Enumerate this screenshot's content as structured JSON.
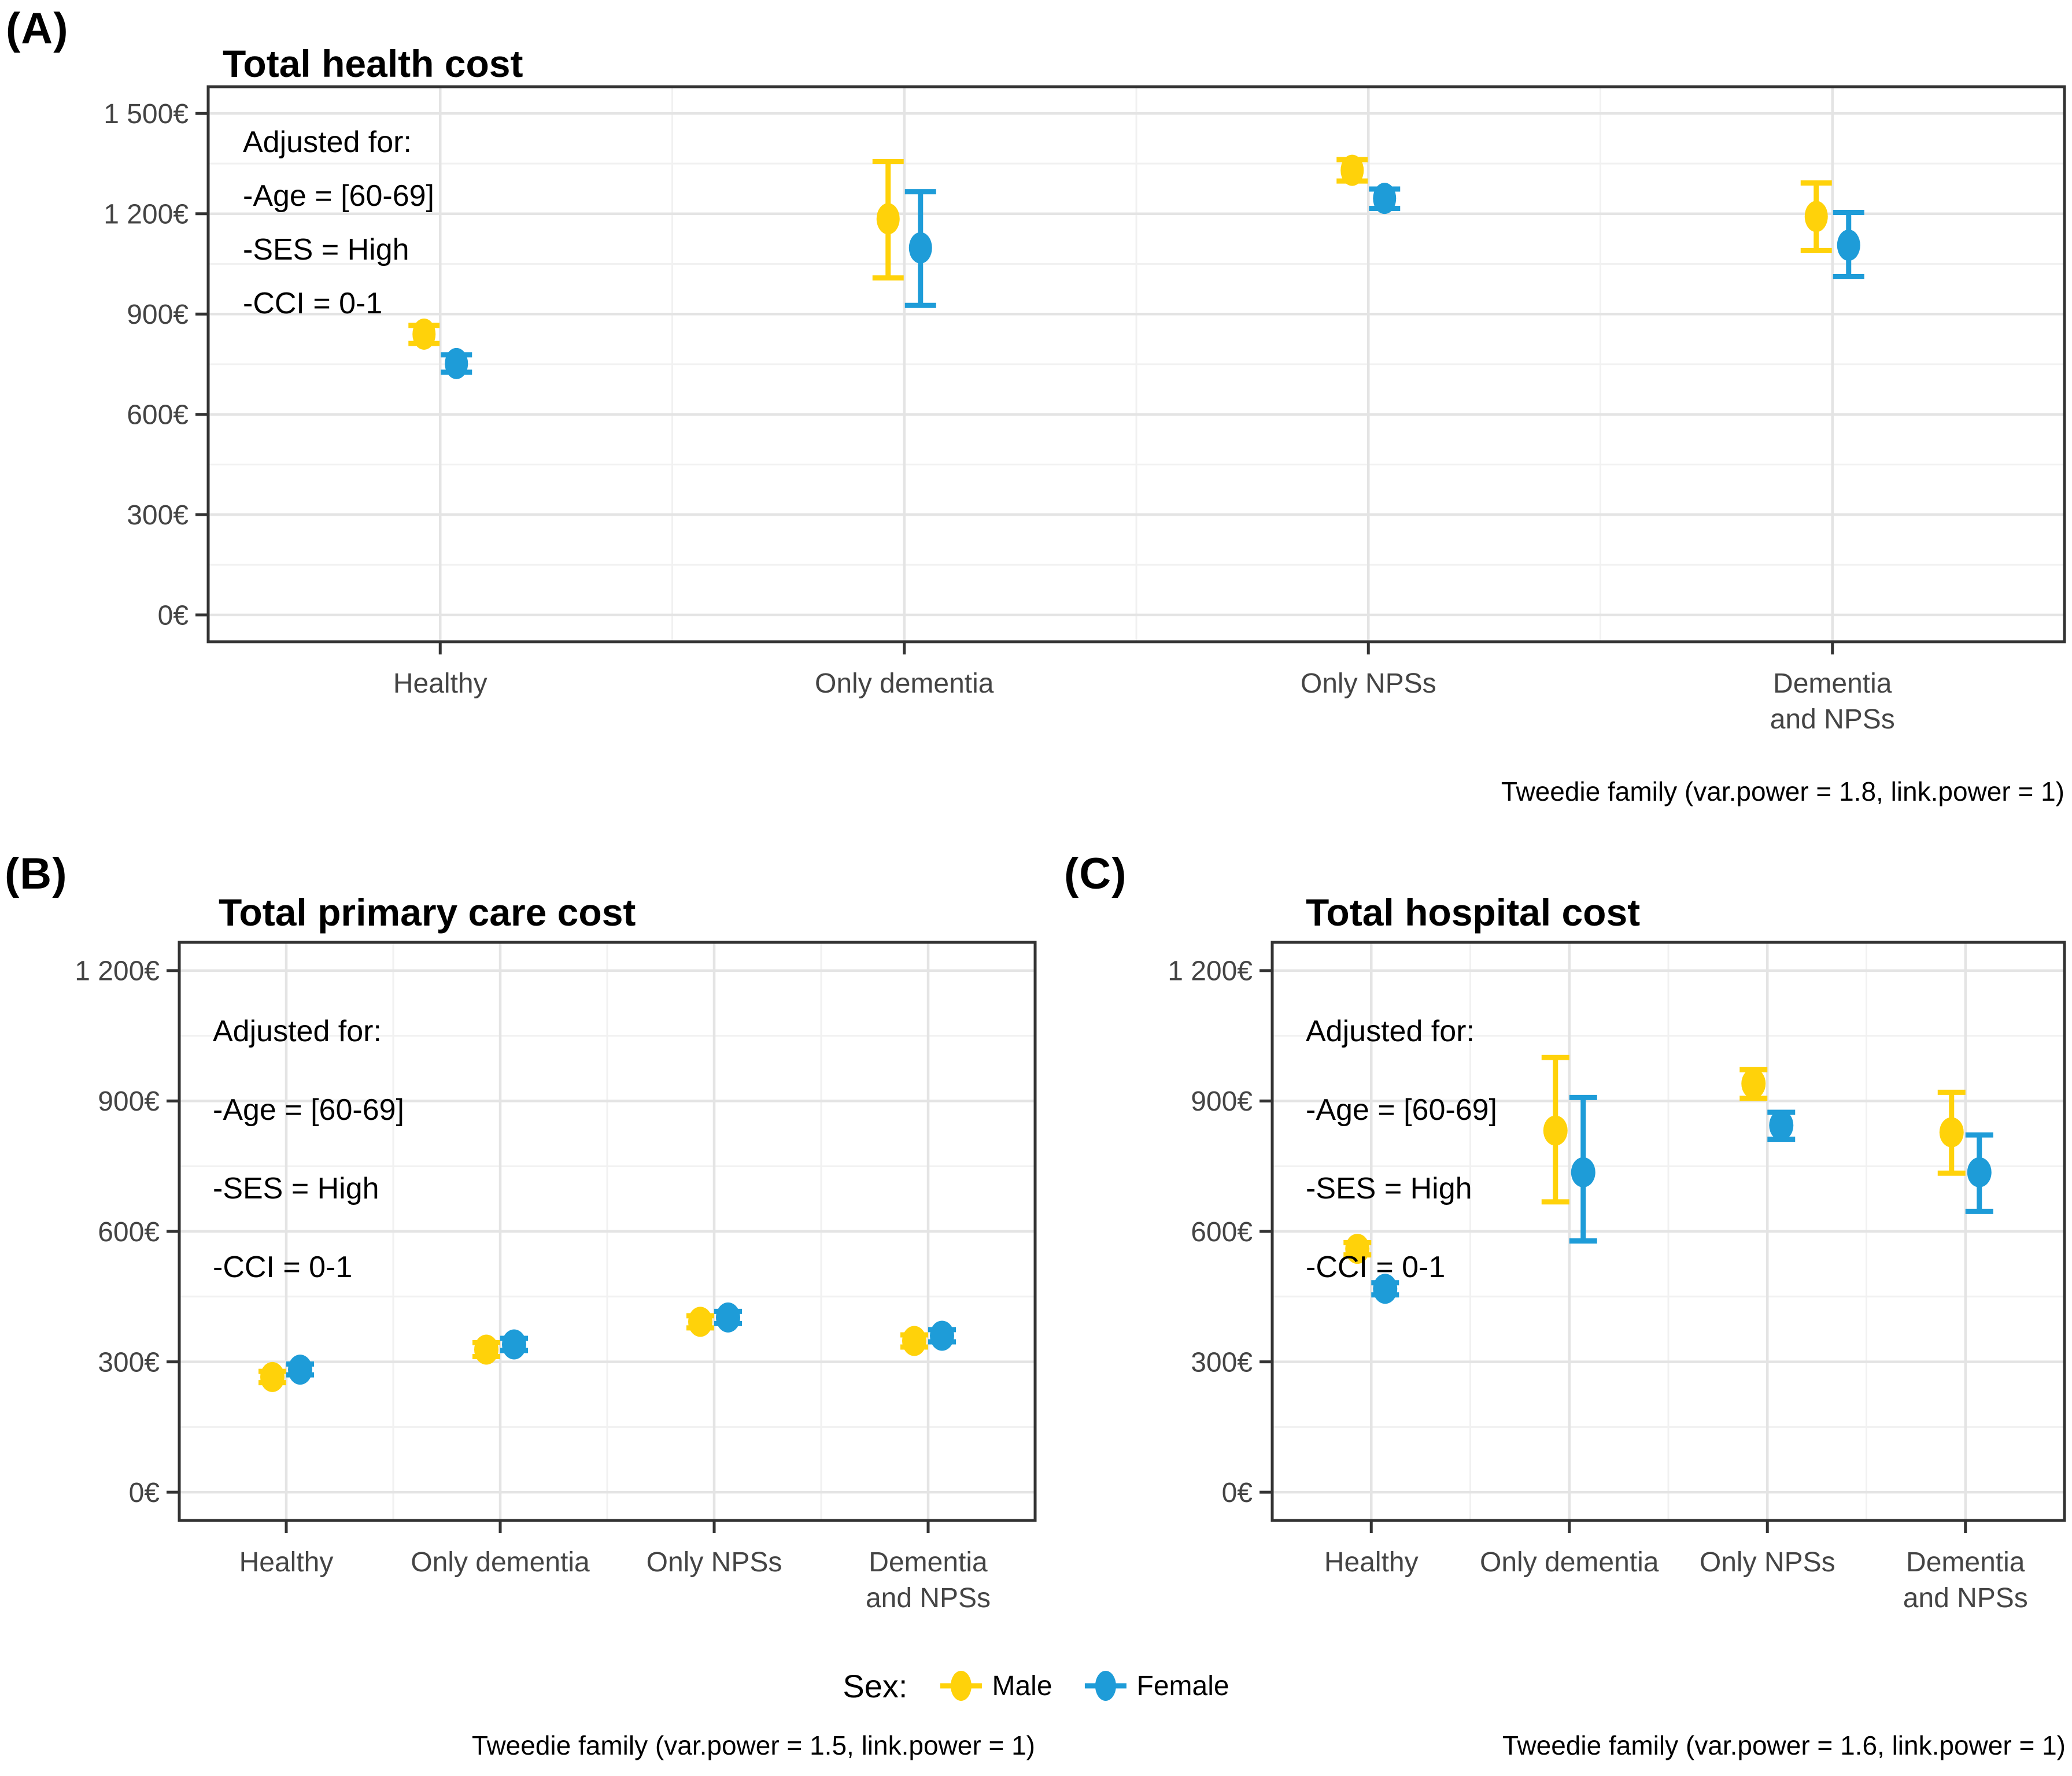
{
  "figure": {
    "legend": {
      "label": "Sex:",
      "items": [
        {
          "name": "Male",
          "color": "#FFD20A"
        },
        {
          "name": "Female",
          "color": "#1E9CD8"
        }
      ]
    },
    "colors": {
      "grid_major": "#E4E4E4",
      "grid_minor": "#F1F1F1",
      "panel_border": "#333333",
      "axis_text": "#444444"
    }
  },
  "chart_data": [
    {
      "type": "pointrange",
      "letter": "(A)",
      "title": "Total health cost",
      "categories": [
        "Healthy",
        "Only dementia",
        "Only NPSs",
        "Dementia and NPSs"
      ],
      "categories_display": [
        [
          "Healthy"
        ],
        [
          "Only dementia"
        ],
        [
          "Only NPSs"
        ],
        [
          "Dementia",
          "and NPSs"
        ]
      ],
      "series": [
        {
          "name": "Male",
          "color": "#FFD20A",
          "values": [
            {
              "mean": 840,
              "lo": 812,
              "hi": 866
            },
            {
              "mean": 1185,
              "lo": 1008,
              "hi": 1356
            },
            {
              "mean": 1330,
              "lo": 1298,
              "hi": 1362
            },
            {
              "mean": 1192,
              "lo": 1090,
              "hi": 1292
            }
          ]
        },
        {
          "name": "Female",
          "color": "#1E9CD8",
          "values": [
            {
              "mean": 752,
              "lo": 726,
              "hi": 778
            },
            {
              "mean": 1098,
              "lo": 926,
              "hi": 1266
            },
            {
              "mean": 1246,
              "lo": 1216,
              "hi": 1274
            },
            {
              "mean": 1106,
              "lo": 1012,
              "hi": 1204
            }
          ]
        }
      ],
      "annotation": [
        "Adjusted for:",
        "-Age = [60-69]",
        "-SES = High",
        "-CCI = 0-1"
      ],
      "caption": "Tweedie family (var.power = 1.8, link.power = 1)",
      "ylabel": "",
      "xlabel": "",
      "ytick_values": [
        0,
        300,
        600,
        900,
        1200,
        1500
      ],
      "ytick_labels": [
        "0€",
        "300€",
        "600€",
        "900€",
        "1 200€",
        "1 500€"
      ],
      "ylim": [
        -80,
        1580
      ],
      "grid": true,
      "legend_position": "bottom"
    },
    {
      "type": "pointrange",
      "letter": "(B)",
      "title": "Total primary care cost",
      "categories": [
        "Healthy",
        "Only dementia",
        "Only NPSs",
        "Dementia and NPSs"
      ],
      "categories_display": [
        [
          "Healthy"
        ],
        [
          "Only dementia"
        ],
        [
          "Only NPSs"
        ],
        [
          "Dementia",
          "and NPSs"
        ]
      ],
      "series": [
        {
          "name": "Male",
          "color": "#FFD20A",
          "values": [
            {
              "mean": 265,
              "lo": 252,
              "hi": 278
            },
            {
              "mean": 328,
              "lo": 312,
              "hi": 344
            },
            {
              "mean": 392,
              "lo": 378,
              "hi": 406
            },
            {
              "mean": 348,
              "lo": 334,
              "hi": 362
            }
          ]
        },
        {
          "name": "Female",
          "color": "#1E9CD8",
          "values": [
            {
              "mean": 282,
              "lo": 270,
              "hi": 295
            },
            {
              "mean": 340,
              "lo": 326,
              "hi": 354
            },
            {
              "mean": 402,
              "lo": 388,
              "hi": 416
            },
            {
              "mean": 360,
              "lo": 346,
              "hi": 374
            }
          ]
        }
      ],
      "annotation": [
        "Adjusted for:",
        "-Age = [60-69]",
        "-SES = High",
        "-CCI = 0-1"
      ],
      "caption": "Tweedie family (var.power = 1.5, link.power = 1)",
      "ylabel": "",
      "xlabel": "",
      "ytick_values": [
        0,
        300,
        600,
        900,
        1200
      ],
      "ytick_labels": [
        "0€",
        "300€",
        "600€",
        "900€",
        "1 200€"
      ],
      "ylim": [
        -65,
        1265
      ],
      "grid": true,
      "legend_position": "bottom"
    },
    {
      "type": "pointrange",
      "letter": "(C)",
      "title": "Total hospital cost",
      "categories": [
        "Healthy",
        "Only dementia",
        "Only NPSs",
        "Dementia and NPSs"
      ],
      "categories_display": [
        [
          "Healthy"
        ],
        [
          "Only dementia"
        ],
        [
          "Only NPSs"
        ],
        [
          "Dementia",
          "and NPSs"
        ]
      ],
      "series": [
        {
          "name": "Male",
          "color": "#FFD20A",
          "values": [
            {
              "mean": 560,
              "lo": 546,
              "hi": 574
            },
            {
              "mean": 832,
              "lo": 668,
              "hi": 1000
            },
            {
              "mean": 940,
              "lo": 906,
              "hi": 972
            },
            {
              "mean": 828,
              "lo": 734,
              "hi": 920
            }
          ]
        },
        {
          "name": "Female",
          "color": "#1E9CD8",
          "values": [
            {
              "mean": 468,
              "lo": 454,
              "hi": 482
            },
            {
              "mean": 736,
              "lo": 578,
              "hi": 908
            },
            {
              "mean": 844,
              "lo": 812,
              "hi": 874
            },
            {
              "mean": 736,
              "lo": 646,
              "hi": 822
            }
          ]
        }
      ],
      "annotation": [
        "Adjusted for:",
        "-Age = [60-69]",
        "-SES = High",
        "-CCI = 0-1"
      ],
      "caption": "Tweedie family (var.power = 1.6, link.power = 1)",
      "ylabel": "",
      "xlabel": "",
      "ytick_values": [
        0,
        300,
        600,
        900,
        1200
      ],
      "ytick_labels": [
        "0€",
        "300€",
        "600€",
        "900€",
        "1 200€"
      ],
      "ylim": [
        -65,
        1265
      ],
      "grid": true,
      "legend_position": "bottom"
    }
  ]
}
